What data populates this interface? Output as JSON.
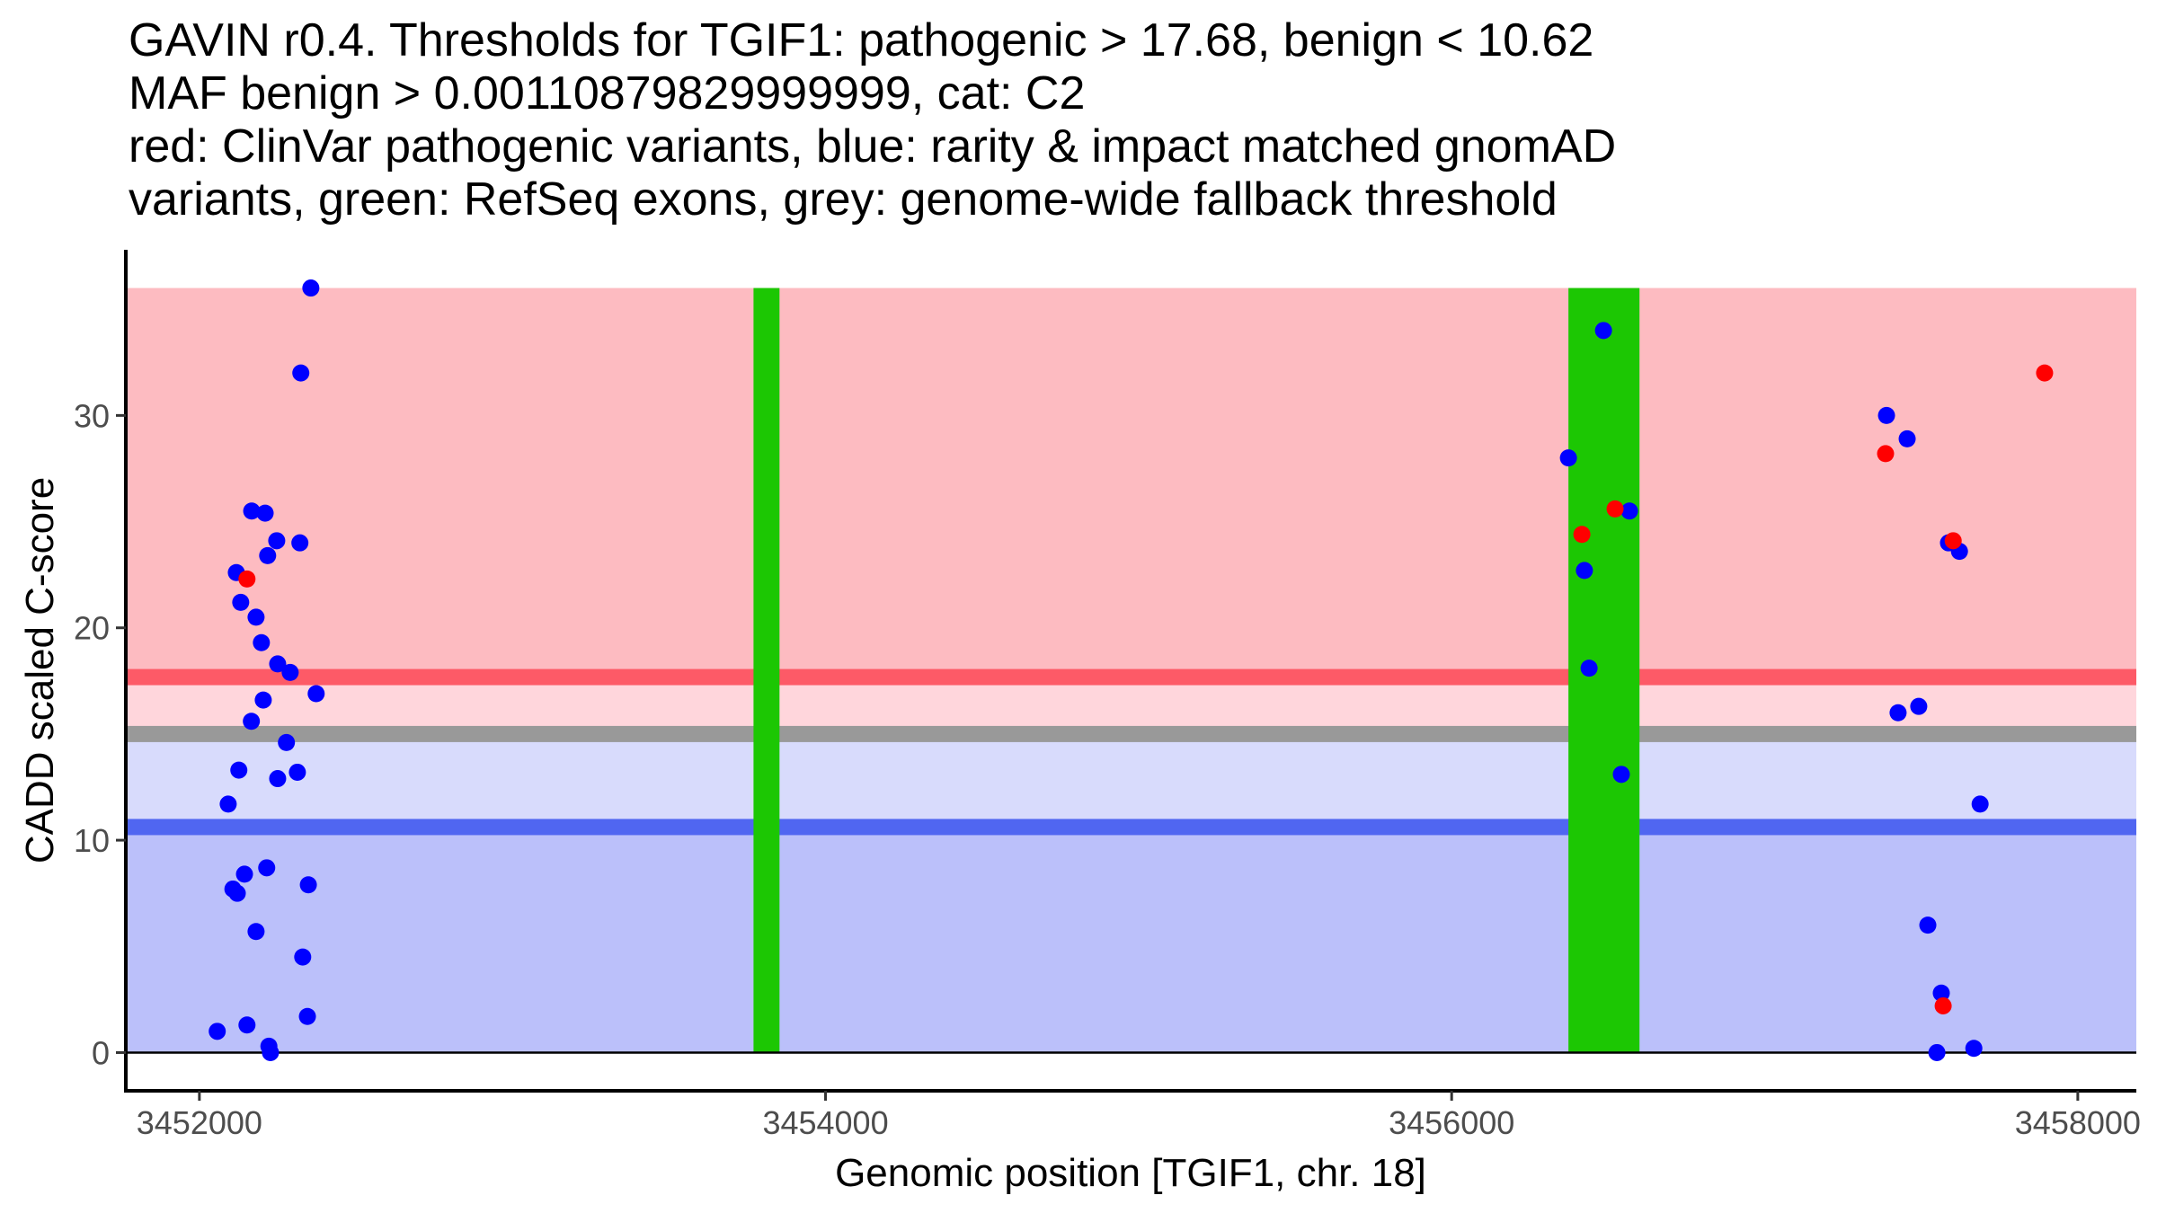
{
  "chart_data": {
    "type": "scatter",
    "title_lines": [
      "GAVIN r0.4. Thresholds for TGIF1: pathogenic > 17.68, benign < 10.62",
      "MAF benign > 0.00110879829999999, cat: C2",
      "red: ClinVar pathogenic variants, blue: rarity & impact matched gnomAD",
      "variants, green: RefSeq exons, grey: genome-wide fallback threshold"
    ],
    "xlabel": "Genomic position [TGIF1, chr. 18]",
    "ylabel": "CADD scaled C-score",
    "xlim": [
      3451765,
      3458187
    ],
    "ylim": [
      -1.8,
      37.8
    ],
    "xticks": [
      3452000,
      3454000,
      3456000,
      3458000
    ],
    "xtick_labels": [
      "3452000",
      "3454000",
      "3456000",
      "3458000"
    ],
    "yticks": [
      0,
      10,
      20,
      30
    ],
    "ytick_labels": [
      "0",
      "10",
      "20",
      "30"
    ],
    "grid": false,
    "legend": "none",
    "thresholds": {
      "pathogenic": 17.68,
      "benign": 10.62,
      "genome_wide_fallback": 15.0,
      "max_score": 36.0
    },
    "regions": [
      {
        "name": "pathogenic-region",
        "y0": 17.68,
        "y1": 36.0,
        "color": "#FDBBC1"
      },
      {
        "name": "fallback-pathogenic-region",
        "y0": 15.0,
        "y1": 17.68,
        "color": "#FFD6DC"
      },
      {
        "name": "fallback-benign-region",
        "y0": 10.62,
        "y1": 15.0,
        "color": "#D8DBFC"
      },
      {
        "name": "benign-region",
        "y0": 0.0,
        "y1": 10.62,
        "color": "#BBC0FA"
      }
    ],
    "threshold_lines": [
      {
        "name": "pathogenic-threshold-line",
        "y": 17.68,
        "color": "#FD5A67"
      },
      {
        "name": "fallback-threshold-line",
        "y": 15.0,
        "color": "#999999"
      },
      {
        "name": "benign-threshold-line",
        "y": 10.62,
        "color": "#5066F1"
      }
    ],
    "exons": [
      {
        "start": 3453770,
        "end": 3453853,
        "color": "#1CC703"
      },
      {
        "start": 3456373,
        "end": 3456600,
        "color": "#1CC703"
      }
    ],
    "series": [
      {
        "name": "gnomAD matched variants",
        "color": "#0000FF",
        "points": [
          [
            3452356,
            36.0
          ],
          [
            3452324,
            32.0
          ],
          [
            3452167,
            25.5
          ],
          [
            3452210,
            25.4
          ],
          [
            3452247,
            24.1
          ],
          [
            3452321,
            24.0
          ],
          [
            3452218,
            23.4
          ],
          [
            3452118,
            22.6
          ],
          [
            3452132,
            21.2
          ],
          [
            3452181,
            20.5
          ],
          [
            3452198,
            19.3
          ],
          [
            3452250,
            18.3
          ],
          [
            3452290,
            17.9
          ],
          [
            3452373,
            16.9
          ],
          [
            3452204,
            16.6
          ],
          [
            3452166,
            15.6
          ],
          [
            3452278,
            14.6
          ],
          [
            3452126,
            13.3
          ],
          [
            3452313,
            13.2
          ],
          [
            3452250,
            12.9
          ],
          [
            3452092,
            11.7
          ],
          [
            3452215,
            8.7
          ],
          [
            3452144,
            8.4
          ],
          [
            3452348,
            7.9
          ],
          [
            3452107,
            7.7
          ],
          [
            3452121,
            7.5
          ],
          [
            3452181,
            5.7
          ],
          [
            3452330,
            4.5
          ],
          [
            3452345,
            1.7
          ],
          [
            3452152,
            1.3
          ],
          [
            3452057,
            1.0
          ],
          [
            3452222,
            0.3
          ],
          [
            3452227,
            0.0
          ],
          [
            3456485,
            34.0
          ],
          [
            3456373,
            28.0
          ],
          [
            3456568,
            25.5
          ],
          [
            3456424,
            22.7
          ],
          [
            3456439,
            18.1
          ],
          [
            3456542,
            13.1
          ],
          [
            3457389,
            30.0
          ],
          [
            3457455,
            28.9
          ],
          [
            3457587,
            24.0
          ],
          [
            3457622,
            23.6
          ],
          [
            3457426,
            16.0
          ],
          [
            3457492,
            16.3
          ],
          [
            3457688,
            11.7
          ],
          [
            3457521,
            6.0
          ],
          [
            3457564,
            2.8
          ],
          [
            3457550,
            0.0
          ],
          [
            3457668,
            0.2
          ]
        ]
      },
      {
        "name": "ClinVar pathogenic variants",
        "color": "#FF0000",
        "points": [
          [
            3452152,
            22.3
          ],
          [
            3456522,
            25.6
          ],
          [
            3456416,
            24.4
          ],
          [
            3457894,
            32.0
          ],
          [
            3457386,
            28.2
          ],
          [
            3457602,
            24.1
          ],
          [
            3457570,
            2.2
          ]
        ]
      }
    ]
  }
}
